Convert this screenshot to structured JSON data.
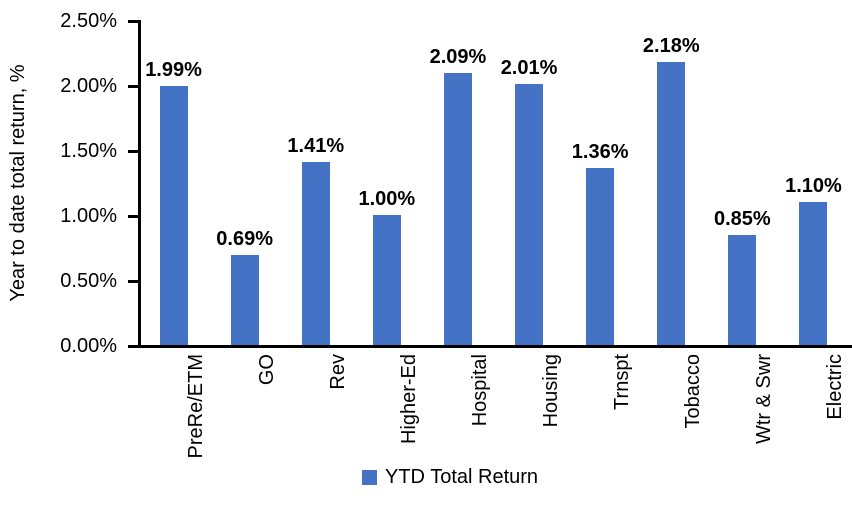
{
  "chart_data": {
    "type": "bar",
    "title": "",
    "ylabel": "Year to date total return, %",
    "xlabel": "",
    "categories": [
      "PreRe/ETM",
      "GO",
      "Rev",
      "Higher-Ed",
      "Hospital",
      "Housing",
      "Trnspt",
      "Tobacco",
      "Wtr & Swr",
      "Electric"
    ],
    "values": [
      1.99,
      0.69,
      1.41,
      1.0,
      2.09,
      2.01,
      1.36,
      2.18,
      0.85,
      1.1
    ],
    "data_labels": [
      "1.99%",
      "0.69%",
      "1.41%",
      "1.00%",
      "2.09%",
      "2.01%",
      "1.36%",
      "2.18%",
      "0.85%",
      "1.10%"
    ],
    "ylim": [
      0,
      2.5
    ],
    "yticks": [
      {
        "value": 0.0,
        "label": "0.00%"
      },
      {
        "value": 0.5,
        "label": "0.50%"
      },
      {
        "value": 1.0,
        "label": "1.00%"
      },
      {
        "value": 1.5,
        "label": "1.50%"
      },
      {
        "value": 2.0,
        "label": "2.00%"
      },
      {
        "value": 2.5,
        "label": "2.50%"
      }
    ],
    "grid": false,
    "legend_position": "bottom",
    "legend_label": "YTD Total Return",
    "bar_color": "#4472C4",
    "axis_color": "#000000",
    "text_color": "#000000"
  }
}
